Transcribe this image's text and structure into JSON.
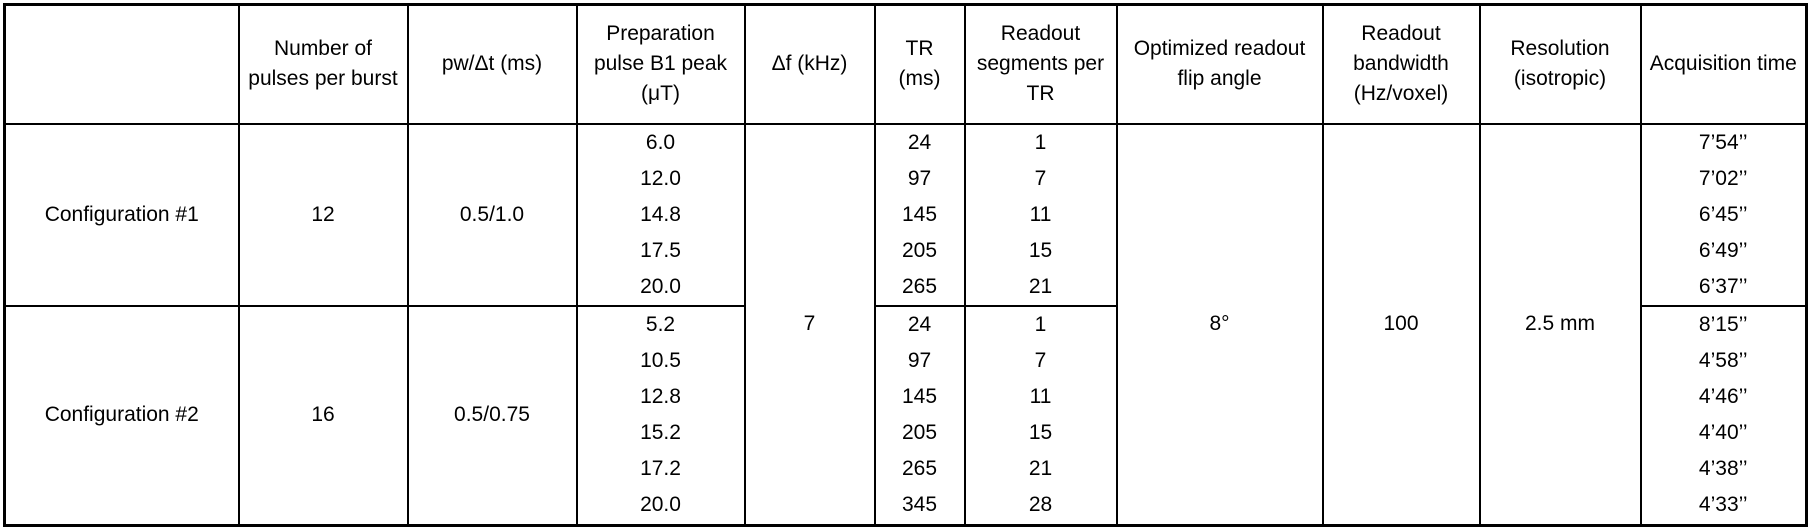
{
  "table": {
    "headers": [
      "",
      "Number of pulses per burst",
      "pw/Δt (ms)",
      "Preparation pulse B1 peak (μT)",
      "Δf (kHz)",
      "TR (ms)",
      "Readout segments per TR",
      "Optimized readout flip angle",
      "Readout bandwidth (Hz/voxel)",
      "Resolution (isotropic)",
      "Acquisition time"
    ],
    "shared": {
      "delta_f_khz": "7",
      "readout_flip_angle": "8°",
      "readout_bandwidth": "100",
      "resolution": "2.5 mm"
    },
    "blocks": [
      {
        "name": "Configuration #1",
        "pulses_per_burst": "12",
        "pw_dt_ms": "0.5/1.0",
        "b1_peaks": [
          "6.0",
          "12.0",
          "14.8",
          "17.5",
          "20.0"
        ],
        "tr_ms": [
          "24",
          "97",
          "145",
          "205",
          "265"
        ],
        "readout_segments": [
          "1",
          "7",
          "11",
          "15",
          "21"
        ],
        "acquisition_times": [
          "7’54’’",
          "7’02’’",
          "6’45’’",
          "6’49’’",
          "6’37’’"
        ]
      },
      {
        "name": "Configuration #2",
        "pulses_per_burst": "16",
        "pw_dt_ms": "0.5/0.75",
        "b1_peaks": [
          "5.2",
          "10.5",
          "12.8",
          "15.2",
          "17.2",
          "20.0"
        ],
        "tr_ms": [
          "24",
          "97",
          "145",
          "205",
          "265",
          "345"
        ],
        "readout_segments": [
          "1",
          "7",
          "11",
          "15",
          "21",
          "28"
        ],
        "acquisition_times": [
          "8’15’’",
          "4’58’’",
          "4’46’’",
          "4’40’’",
          "4’38’’",
          "4’33’’"
        ]
      }
    ],
    "colors": {
      "border": "#000000",
      "text": "#000000",
      "background": "#ffffff"
    }
  }
}
